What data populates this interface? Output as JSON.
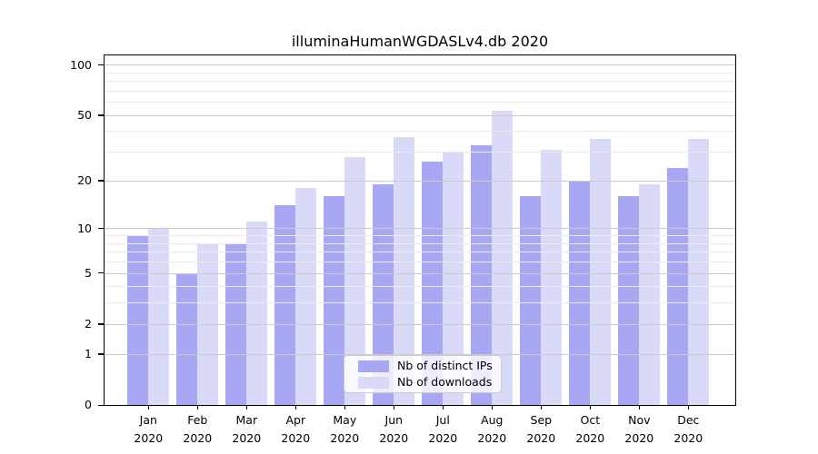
{
  "title": "illuminaHumanWGDASLv4.db 2020",
  "chart_data": {
    "type": "bar",
    "title": "illuminaHumanWGDASLv4.db 2020",
    "categories": [
      "Jan",
      "Feb",
      "Mar",
      "Apr",
      "May",
      "Jun",
      "Jul",
      "Aug",
      "Sep",
      "Oct",
      "Nov",
      "Dec"
    ],
    "x_year": "2020",
    "series": [
      {
        "name": "Nb of distinct IPs",
        "color": "#a7a7f4",
        "values": [
          9,
          5,
          8,
          14,
          16,
          19,
          26,
          33,
          16,
          20,
          16,
          24
        ]
      },
      {
        "name": "Nb of downloads",
        "color": "#d9d9f8",
        "values": [
          10,
          8,
          11,
          18,
          28,
          37,
          30,
          53,
          31,
          36,
          19,
          36
        ]
      }
    ],
    "yscale": "log1p",
    "yticks": [
      0,
      1,
      2,
      5,
      10,
      20,
      50,
      100
    ],
    "yticks_minor": [
      3,
      4,
      6,
      7,
      8,
      9,
      30,
      40,
      60,
      70,
      80,
      90
    ],
    "ylim": [
      0,
      112
    ],
    "xlabel": "",
    "ylabel": "",
    "grid": true,
    "grid_major_color": "#cbcbcb",
    "grid_minor_color": "#ececec",
    "axis_color": "#000000",
    "legend_position": "lower center"
  }
}
